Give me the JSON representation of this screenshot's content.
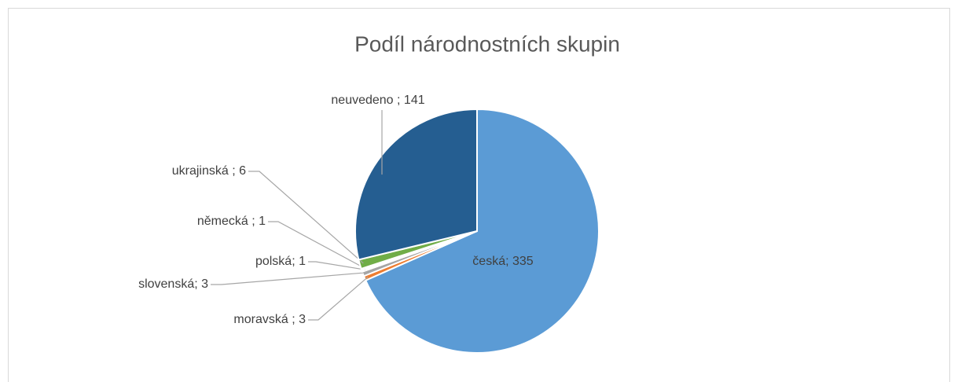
{
  "chart_data": {
    "type": "pie",
    "title": "Podíl národnostních skupin",
    "values": [
      335,
      3,
      3,
      1,
      1,
      6,
      141
    ],
    "value_labels": [
      "česká; 335",
      "moravská ; 3",
      "slovenská; 3",
      "polská; 1",
      "německá ; 1",
      "ukrajinská ; 6",
      "neuvedeno ; 141"
    ],
    "colors": [
      "#5b9bd5",
      "#ed7d31",
      "#a5a5a5",
      "#ffc000",
      "#4472c4",
      "#70ad47",
      "#255e91"
    ]
  }
}
